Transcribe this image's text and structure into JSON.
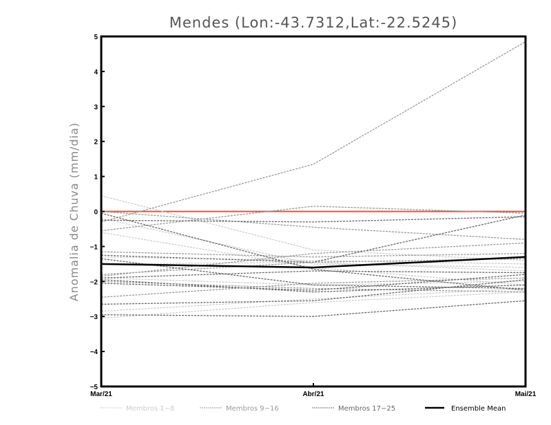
{
  "chart_data": {
    "type": "line",
    "title": "Mendes (Lon:-43.7312,Lat:-22.5245)",
    "xlabel": "",
    "ylabel": "Anomalia de Chuva (mm/dia)",
    "x": [
      "Mar/21",
      "Abr/21",
      "Mai/21"
    ],
    "ylim": [
      -5,
      5
    ],
    "yticks": [
      "5",
      "4",
      "3",
      "2",
      "1",
      "0",
      "-1",
      "-2",
      "-3",
      "-4",
      "-5"
    ],
    "grid": false,
    "reference_line": {
      "y": 0,
      "color": "#e84a4a"
    },
    "groups": [
      {
        "name": "Membros 1-8",
        "color": "#cccccc",
        "series": [
          [
            0.45,
            -1.1,
            -1.4
          ],
          [
            -0.2,
            -1.5,
            -1.6
          ],
          [
            -1.3,
            -1.4,
            -1.5
          ],
          [
            -2.85,
            -2.5,
            -2.2
          ],
          [
            -3.05,
            -2.6,
            -2.3
          ],
          [
            -1.5,
            -1.45,
            -1.7
          ],
          [
            -1.9,
            -2.1,
            -2.0
          ],
          [
            -0.6,
            -1.6,
            -2.1
          ]
        ]
      },
      {
        "name": "Membros 9-16",
        "color": "#999999",
        "series": [
          [
            -0.3,
            1.35,
            4.85
          ],
          [
            -0.55,
            0.15,
            -0.05
          ],
          [
            0.0,
            -0.45,
            -0.8
          ],
          [
            -1.15,
            -1.3,
            -1.2
          ],
          [
            -1.8,
            -1.45,
            -1.35
          ],
          [
            -2.0,
            -2.2,
            -2.3
          ],
          [
            -2.45,
            -2.05,
            -1.9
          ],
          [
            -1.85,
            -1.2,
            -0.9
          ]
        ]
      },
      {
        "name": "Membros 17-25",
        "color": "#666666",
        "series": [
          [
            -0.05,
            -1.65,
            -2.25
          ],
          [
            -0.25,
            -0.3,
            -0.15
          ],
          [
            -1.25,
            -1.45,
            -0.1
          ],
          [
            -1.35,
            -2.1,
            -2.2
          ],
          [
            -2.05,
            -2.25,
            -1.8
          ],
          [
            -2.65,
            -2.55,
            -1.95
          ],
          [
            -2.95,
            -3.0,
            -2.55
          ],
          [
            -1.9,
            -1.7,
            -1.75
          ],
          [
            -1.95,
            -2.3,
            -2.1
          ]
        ]
      }
    ],
    "mean": {
      "name": "Ensemble Mean",
      "color": "#000000",
      "values": [
        -1.5,
        -1.6,
        -1.3
      ]
    },
    "legend_position": "bottom"
  }
}
